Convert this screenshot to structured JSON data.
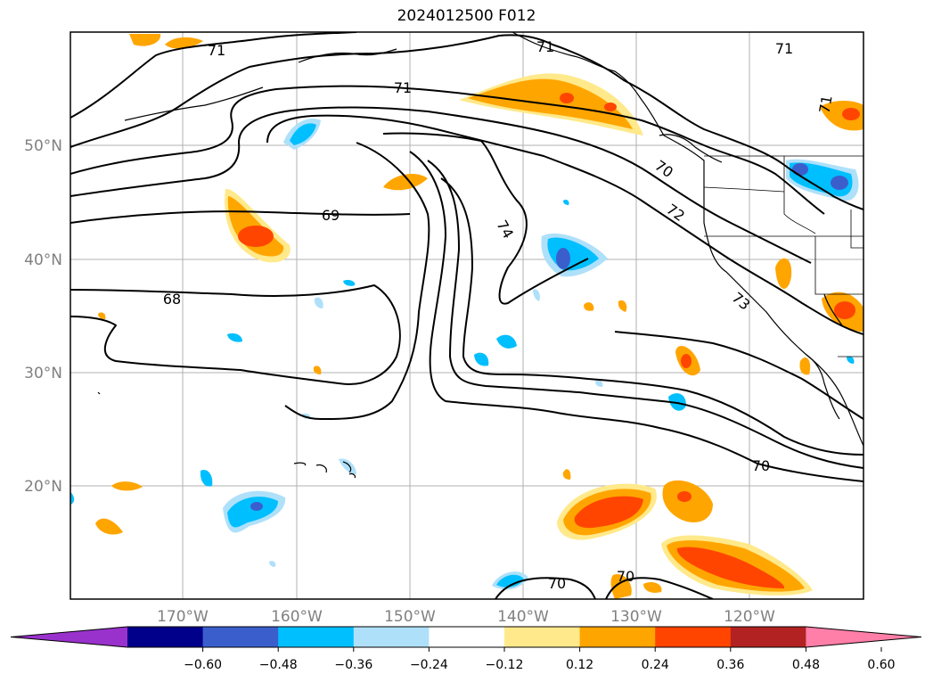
{
  "title": "2024012500 F012",
  "map": {
    "lon_labels": [
      "170°W",
      "160°W",
      "150°W",
      "140°W",
      "130°W",
      "120°W"
    ],
    "lat_labels": [
      "50°N",
      "40°N",
      "30°N",
      "20°N"
    ],
    "contour_labels": [
      "71",
      "71",
      "71",
      "71",
      "71",
      "70",
      "72",
      "74",
      "69",
      "68",
      "73",
      "70",
      "70",
      "70"
    ]
  },
  "colorbar": {
    "colors": [
      "#9932cc",
      "#00008b",
      "#3a5fcd",
      "#00bfff",
      "#afe0fa",
      "#ffffff",
      "#ffe98a",
      "#ffa500",
      "#ff4500",
      "#b22222",
      "#ff7fa8"
    ],
    "tick_labels": [
      "−0.60",
      "−0.48",
      "−0.36",
      "−0.24",
      "−0.12",
      "0.12",
      "0.24",
      "0.36",
      "0.48",
      "0.60"
    ]
  }
}
